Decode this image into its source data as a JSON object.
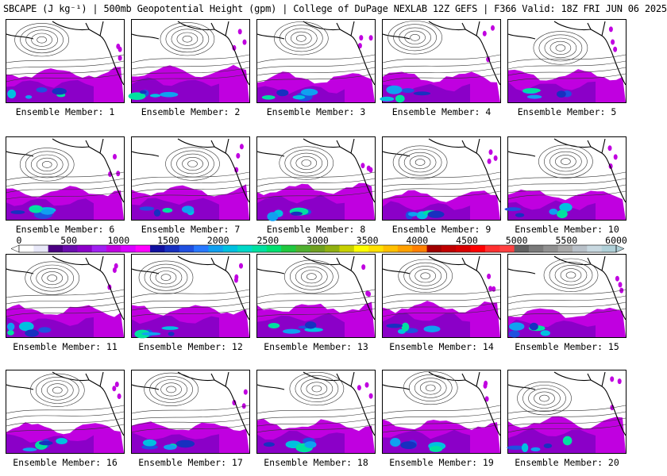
{
  "title": "SBCAPE (J kg⁻¹) | 500mb Geopotential Height (gpm) | College of DuPage NEXLAB 12Z GEFS | F366 Valid: 18Z FRI JUN 06 2025",
  "colorbar": {
    "tick_labels": [
      "0",
      "500",
      "1000",
      "1500",
      "2000",
      "2500",
      "3000",
      "3500",
      "4000",
      "4500",
      "5000",
      "5500",
      "6000"
    ],
    "colors": [
      "#ffffff",
      "#e8e8f8",
      "#4b0082",
      "#6a0dad",
      "#8b00c8",
      "#a020f0",
      "#c000e0",
      "#d800ff",
      "#ff00ff",
      "#1010a0",
      "#1830c0",
      "#2050e0",
      "#2878ff",
      "#10a0f0",
      "#00c0e0",
      "#00d8c8",
      "#00e0a0",
      "#00e070",
      "#20c840",
      "#50b030",
      "#70a020",
      "#90b010",
      "#c8d000",
      "#ffff00",
      "#ffe000",
      "#ffc000",
      "#ffa000",
      "#ff8000",
      "#a00000",
      "#c00000",
      "#d80000",
      "#ff0000",
      "#ff3030",
      "#ff4040",
      "#606060",
      "#7a7a7a",
      "#909090",
      "#a8a8a8",
      "#b8c0c8",
      "#c8d8e0",
      "#b0d0d8"
    ]
  },
  "members": [
    {
      "label": "Ensemble Member: 1"
    },
    {
      "label": "Ensemble Member: 2"
    },
    {
      "label": "Ensemble Member: 3"
    },
    {
      "label": "Ensemble Member: 4"
    },
    {
      "label": "Ensemble Member: 5"
    },
    {
      "label": "Ensemble Member: 6"
    },
    {
      "label": "Ensemble Member: 7"
    },
    {
      "label": "Ensemble Member: 8"
    },
    {
      "label": "Ensemble Member: 9"
    },
    {
      "label": "Ensemble Member: 10"
    },
    {
      "label": "Ensemble Member: 11"
    },
    {
      "label": "Ensemble Member: 12"
    },
    {
      "label": "Ensemble Member: 13"
    },
    {
      "label": "Ensemble Member: 14"
    },
    {
      "label": "Ensemble Member: 15"
    },
    {
      "label": "Ensemble Member: 16"
    },
    {
      "label": "Ensemble Member: 17"
    },
    {
      "label": "Ensemble Member: 18"
    },
    {
      "label": "Ensemble Member: 19"
    },
    {
      "label": "Ensemble Member: 20"
    }
  ]
}
